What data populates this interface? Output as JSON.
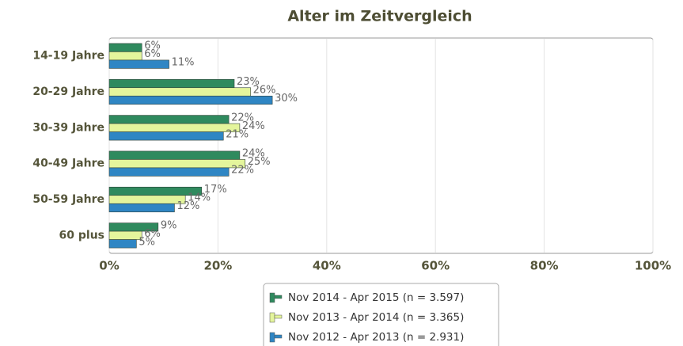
{
  "chart_data": {
    "type": "bar",
    "orientation": "horizontal",
    "title": "Alter im Zeitvergleich",
    "categories": [
      "14-19 Jahre",
      "20-29 Jahre",
      "30-39 Jahre",
      "40-49 Jahre",
      "50-59 Jahre",
      "60 plus"
    ],
    "series": [
      {
        "name": "Nov 2014 - Apr 2015 (n = 3.597)",
        "color": "#2f8a5e",
        "values": [
          6,
          23,
          22,
          24,
          17,
          9
        ],
        "value_labels": [
          "6%",
          "23%",
          "22%",
          "24%",
          "17%",
          "9%"
        ]
      },
      {
        "name": "Nov 2013 - Apr 2014 (n = 3.365)",
        "color": "#e4f59c",
        "values": [
          6,
          26,
          24,
          25,
          14,
          6
        ],
        "value_labels": [
          "6%",
          "26%",
          "24%",
          "25%",
          "14%",
          "6%"
        ]
      },
      {
        "name": "Nov 2012 - Apr 2013 (n = 2.931)",
        "color": "#2f86c4",
        "values": [
          11,
          30,
          21,
          22,
          12,
          5
        ],
        "value_labels": [
          "11%",
          "30%",
          "21%",
          "22%",
          "12%",
          "5%"
        ]
      }
    ],
    "xlim": [
      0,
      100
    ],
    "xticks": [
      {
        "value": 0,
        "label": "0%"
      },
      {
        "value": 20,
        "label": "20%"
      },
      {
        "value": 40,
        "label": "40%"
      },
      {
        "value": 60,
        "label": "60%"
      },
      {
        "value": 80,
        "label": "80%"
      },
      {
        "value": 100,
        "label": "100%"
      }
    ],
    "grid": true,
    "legend": "bottom"
  }
}
